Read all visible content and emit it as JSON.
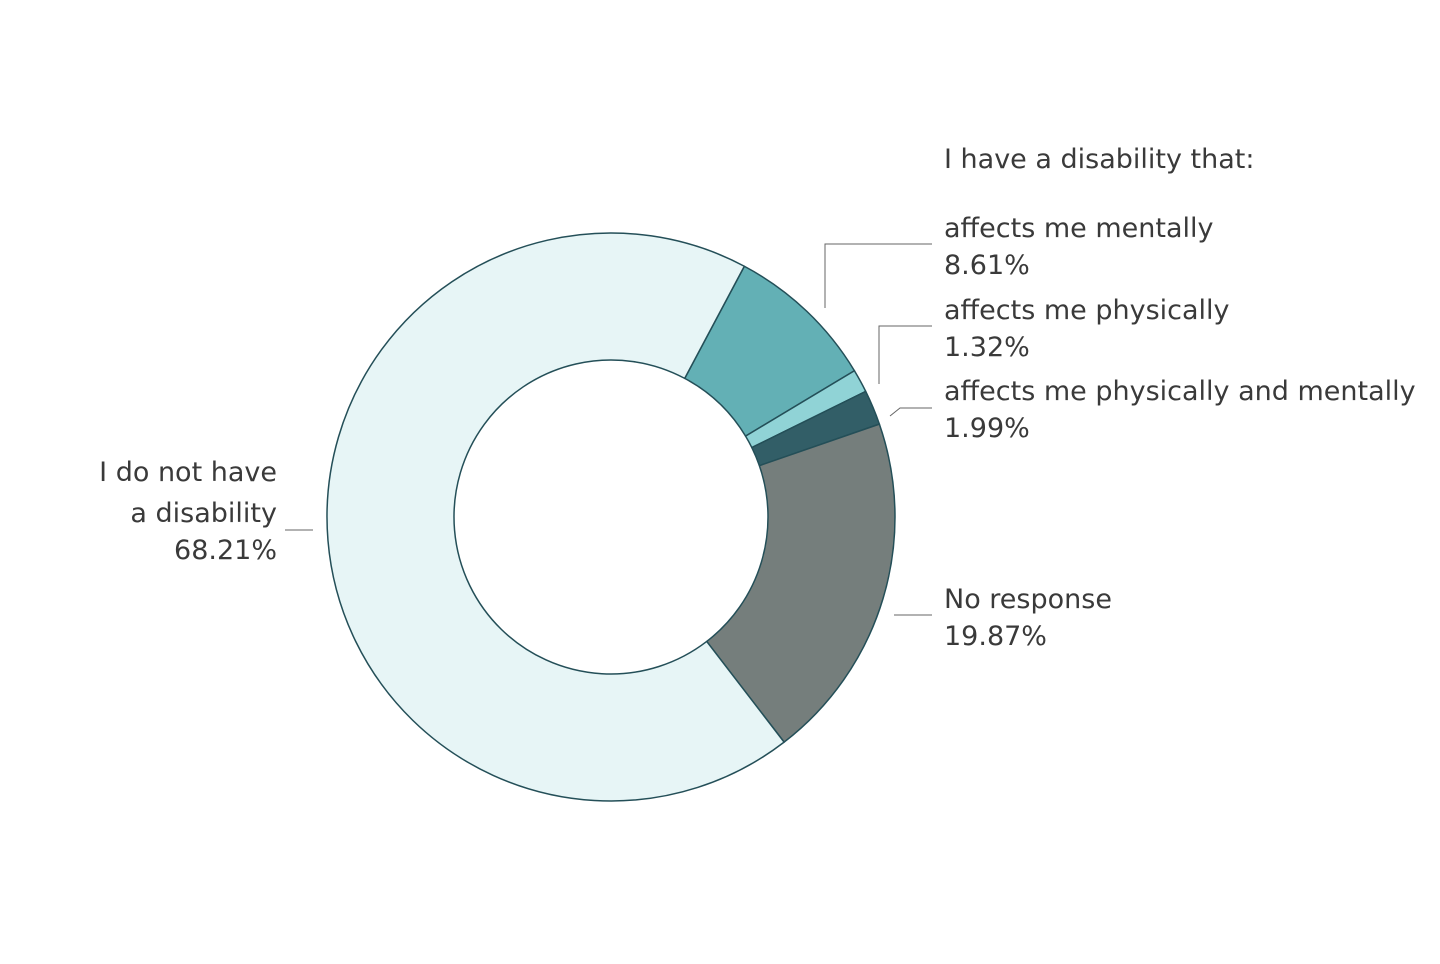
{
  "chart_data": {
    "type": "pie",
    "variant": "donut",
    "legend_heading": "I have a disability that:",
    "slices": [
      {
        "label_lines": [
          "affects me mentally"
        ],
        "value": 8.61,
        "value_label": "8.61%",
        "color": "#63b0b5"
      },
      {
        "label_lines": [
          "affects me physically"
        ],
        "value": 1.32,
        "value_label": "1.32%",
        "color": "#90d3d6"
      },
      {
        "label_lines": [
          "affects me physically and mentally"
        ],
        "value": 1.99,
        "value_label": "1.99%",
        "color": "#325e67"
      },
      {
        "label_lines": [
          "No response"
        ],
        "value": 19.87,
        "value_label": "19.87%",
        "color": "#757e7c"
      },
      {
        "label_lines": [
          "I do not have",
          "a disability"
        ],
        "value": 68.21,
        "value_label": "68.21%",
        "color": "#e7f5f6"
      }
    ],
    "start_angle_deg": 28,
    "direction": "clockwise",
    "slice_outline_color": "#244f58",
    "leader_line_color": "#666666"
  }
}
